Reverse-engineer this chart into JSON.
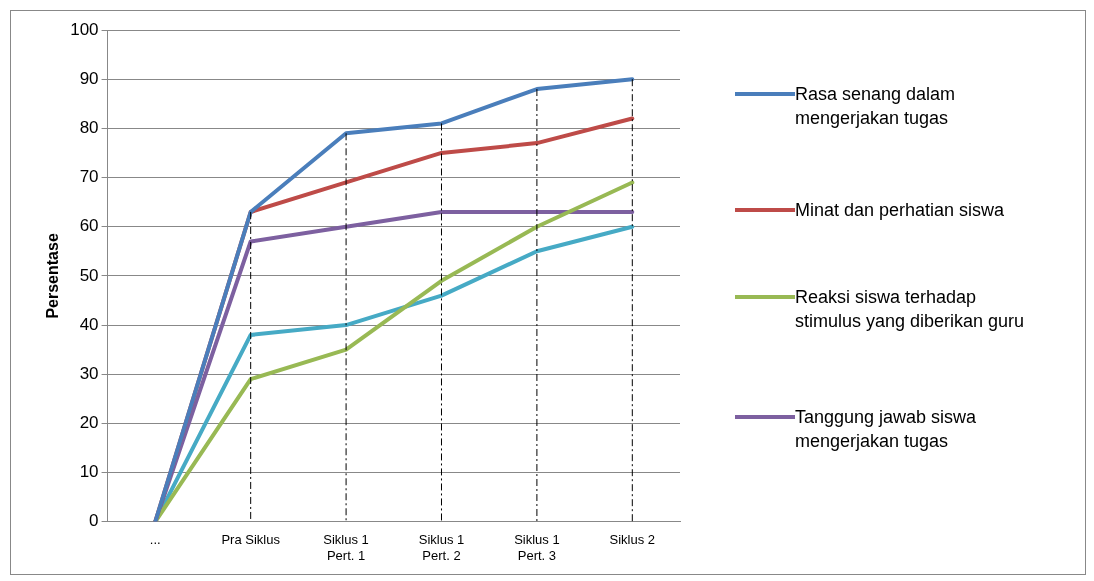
{
  "chart_data": {
    "type": "line",
    "ylabel": "Persentase",
    "categories": [
      "...",
      "Pra Siklus",
      "Siklus 1 Pert. 1",
      "Siklus 1 Pert. 2",
      "Siklus 1 Pert. 3",
      "Siklus 2"
    ],
    "series": [
      {
        "name": "Rasa senang dalam mengerjakan tugas",
        "color": "#4a7ebb",
        "values": [
          0,
          63,
          79,
          81,
          88,
          90
        ]
      },
      {
        "name": "Minat dan perhatian siswa",
        "color": "#be4b48",
        "values": [
          0,
          63,
          69,
          75,
          77,
          82
        ]
      },
      {
        "name": "Reaksi siswa terhadap stimulus yang diberikan guru",
        "color": "#98b954",
        "values": [
          0,
          29,
          35,
          49,
          60,
          69
        ]
      },
      {
        "name": "Tanggung jawab siswa mengerjakan tugas",
        "color": "#7d60a0",
        "values": [
          0,
          57,
          60,
          63,
          63,
          63
        ]
      },
      {
        "color": "#46aac5",
        "values": [
          0,
          38,
          40,
          46,
          55,
          60
        ]
      }
    ],
    "ylim": [
      0,
      100
    ],
    "yticks": [
      0,
      10,
      20,
      30,
      40,
      50,
      60,
      70,
      80,
      90,
      100
    ],
    "grid": "y",
    "legend": "right",
    "marker": "none",
    "line_style": "solid",
    "ref_lines": [
      {
        "axis": "x",
        "value": "Pra Siklus",
        "color": "#000000",
        "line_style": "dashed"
      },
      {
        "axis": "x",
        "value": "Siklus 1 Pert. 1",
        "color": "#000000",
        "line_style": "dashed"
      },
      {
        "axis": "x",
        "value": "Siklus 1 Pert. 2",
        "color": "#000000",
        "line_style": "dashed"
      },
      {
        "axis": "x",
        "value": "Siklus 1 Pert. 3",
        "color": "#000000",
        "line_style": "dashed"
      },
      {
        "axis": "x",
        "value": "Siklus 2",
        "color": "#000000",
        "line_style": "dashed"
      }
    ]
  }
}
